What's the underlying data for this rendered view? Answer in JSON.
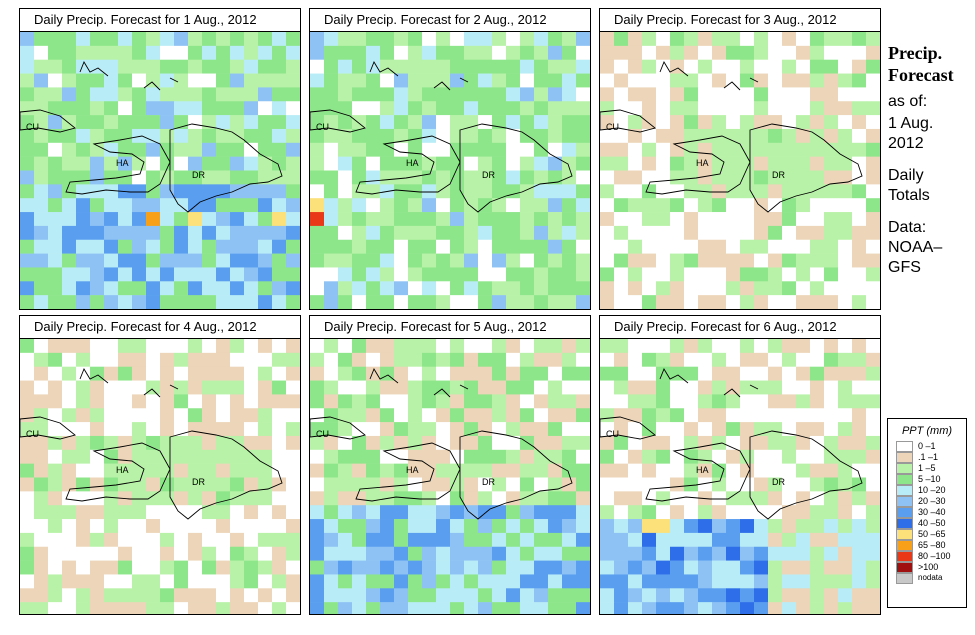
{
  "panels": [
    {
      "title": "Daily Precip. Forecast for  1 Aug., 2012",
      "seed": 11,
      "regime": "wet"
    },
    {
      "title": "Daily Precip. Forecast for  2 Aug., 2012",
      "seed": 23,
      "regime": "moderate"
    },
    {
      "title": "Daily Precip. Forecast for  3 Aug., 2012",
      "seed": 37,
      "regime": "dry"
    },
    {
      "title": "Daily Precip. Forecast for  4 Aug., 2012",
      "seed": 41,
      "regime": "dry"
    },
    {
      "title": "Daily Precip. Forecast for  5 Aug., 2012",
      "seed": 53,
      "regime": "south-wet"
    },
    {
      "title": "Daily Precip. Forecast for  6 Aug., 2012",
      "seed": 67,
      "regime": "south-wet-dry-north"
    }
  ],
  "map_labels": {
    "cuba": "CU",
    "haiti": "HA",
    "dominican_republic": "DR"
  },
  "sidebar": {
    "title_line1": "Precip.",
    "title_line2": "Forecast",
    "as_of": "as of:",
    "date_line1": "1 Aug.",
    "date_line2": "2012",
    "totals_line1": "Daily",
    "totals_line2": "Totals",
    "data_line1": "Data:",
    "data_line2": "NOAA–",
    "data_line3": "GFS"
  },
  "legend": {
    "title": "PPT (mm)",
    "items": [
      {
        "label": "0 –1",
        "color": "#ffffff"
      },
      {
        "label": ".1 –1",
        "color": "#ecd5b8"
      },
      {
        "label": "1 –5",
        "color": "#b8f2a8"
      },
      {
        "label": "5 –10",
        "color": "#8ee68a"
      },
      {
        "label": "10 –20",
        "color": "#b8ecf6"
      },
      {
        "label": "20 –30",
        "color": "#8ec2f4"
      },
      {
        "label": "30 –40",
        "color": "#5a9ef0"
      },
      {
        "label": "40 –50",
        "color": "#2e6ee8"
      },
      {
        "label": "50 –65",
        "color": "#fce07a"
      },
      {
        "label": "65 –80",
        "color": "#f8a018"
      },
      {
        "label": "80 –100",
        "color": "#e83818"
      },
      {
        "label": ">100",
        "color": "#a01010"
      },
      {
        "label": "nodata",
        "color": "#c8c8c8"
      }
    ]
  }
}
